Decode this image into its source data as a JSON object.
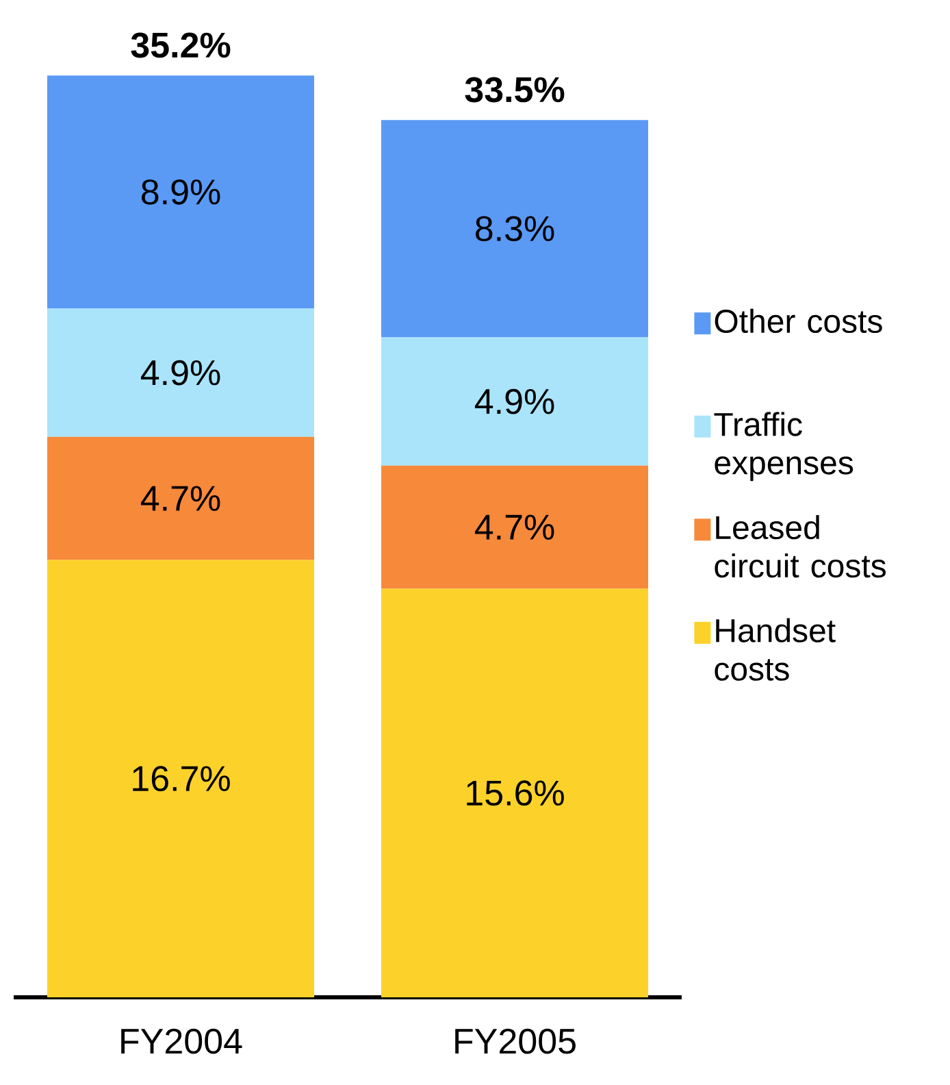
{
  "chart_data": {
    "type": "bar",
    "stacked": true,
    "categories": [
      "FY2004",
      "FY2005"
    ],
    "series": [
      {
        "name": "Handset costs",
        "color": "#fcd22a",
        "values": [
          16.7,
          15.6
        ],
        "value_labels": [
          "16.7%",
          "15.6%"
        ]
      },
      {
        "name": "Leased circuit costs",
        "color": "#f7893a",
        "values": [
          4.7,
          4.7
        ],
        "value_labels": [
          "4.7%",
          "4.7%"
        ]
      },
      {
        "name": "Traffic expenses",
        "color": "#a9e4fb",
        "values": [
          4.9,
          4.9
        ],
        "value_labels": [
          "4.9%",
          "4.9%"
        ]
      },
      {
        "name": "Other costs",
        "color": "#5a9af5",
        "values": [
          8.9,
          8.3
        ],
        "value_labels": [
          "8.9%",
          "8.3%"
        ]
      }
    ],
    "totals": [
      "35.2%",
      "33.5%"
    ],
    "legend": "right"
  }
}
